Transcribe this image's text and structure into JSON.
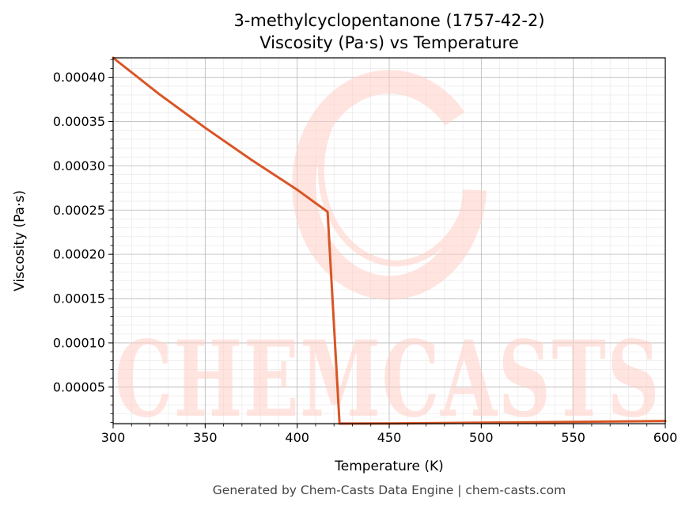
{
  "chart_data": {
    "type": "line",
    "title_line1": "3-methylcyclopentanone (1757-42-2)",
    "title_line2": "Viscosity (Pa·s) vs Temperature",
    "xlabel": "Temperature (K)",
    "ylabel": "Viscosity (Pa·s)",
    "xlim": [
      300,
      600
    ],
    "ylim": [
      8.7e-06,
      0.000422
    ],
    "xticks": [
      300,
      350,
      400,
      450,
      500,
      550,
      600
    ],
    "xtick_labels": [
      "300",
      "350",
      "400",
      "450",
      "500",
      "550",
      "600"
    ],
    "yticks": [
      5e-05,
      0.0001,
      0.00015,
      0.0002,
      0.00025,
      0.0003,
      0.00035,
      0.0004
    ],
    "ytick_labels": [
      "0.00005",
      "0.00010",
      "0.00015",
      "0.00020",
      "0.00025",
      "0.00030",
      "0.00035",
      "0.00040"
    ],
    "grid": true,
    "series": [
      {
        "color": "#d95525",
        "x": [
          300,
          325,
          350,
          375,
          400,
          416.5,
          423,
          450,
          500,
          550,
          600
        ],
        "y": [
          0.000422,
          0.000381,
          0.000343,
          0.000307,
          0.000273,
          0.000248,
          8.8e-06,
          9e-06,
          9.8e-06,
          1.07e-05,
          1.17e-05
        ]
      }
    ]
  },
  "watermark": {
    "text": "CHEMCASTS"
  },
  "footer": "Generated by Chem-Casts Data Engine | chem-casts.com"
}
